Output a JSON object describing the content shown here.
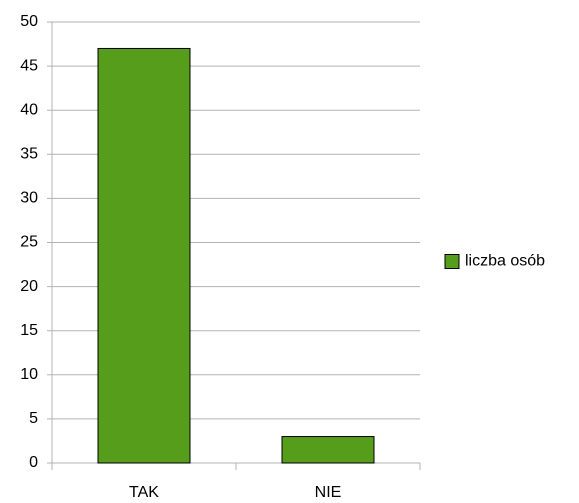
{
  "chart_data": {
    "type": "bar",
    "categories": [
      "TAK",
      "NIE"
    ],
    "series": [
      {
        "name": "liczba osób",
        "color": "#579d1c",
        "values": [
          47,
          3
        ]
      }
    ],
    "ylim": [
      0,
      50
    ],
    "yticks": [
      0,
      5,
      10,
      15,
      20,
      25,
      30,
      35,
      40,
      45,
      50
    ],
    "grid": true,
    "legend": "right"
  }
}
